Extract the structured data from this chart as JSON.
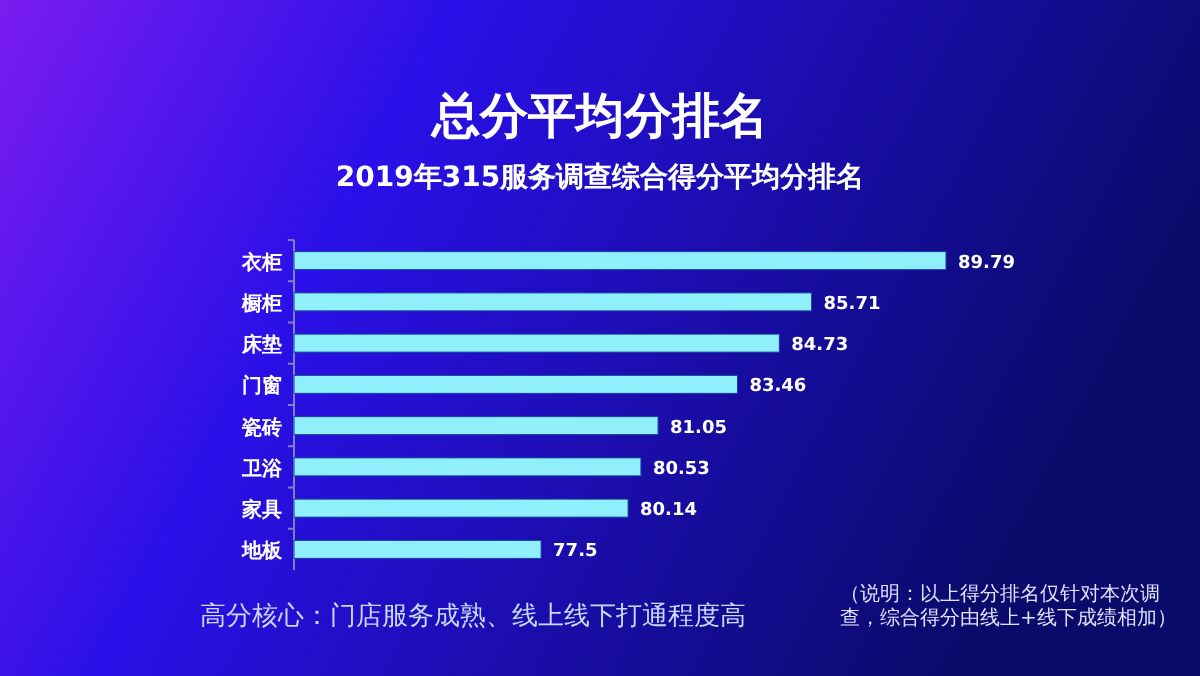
{
  "chart_data": {
    "type": "bar",
    "orientation": "horizontal",
    "title": "总分平均分排名",
    "subtitle": "2019年315服务调查综合得分平均分排名",
    "categories": [
      "衣柜",
      "橱柜",
      "床垫",
      "门窗",
      "瓷砖",
      "卫浴",
      "家具",
      "地板"
    ],
    "values": [
      89.79,
      85.71,
      84.73,
      83.46,
      81.05,
      80.53,
      80.14,
      77.5
    ],
    "color": "#8ff0fb",
    "xlim": [
      70,
      89.79
    ],
    "data_labels": true,
    "tick_labels": "y",
    "annotations": [
      "高分核心：门店服务成熟、线上线下打通程度高",
      "（说明：以上得分排名仅针对本次调查，综合得分由线上+线下成绩相加）"
    ]
  }
}
